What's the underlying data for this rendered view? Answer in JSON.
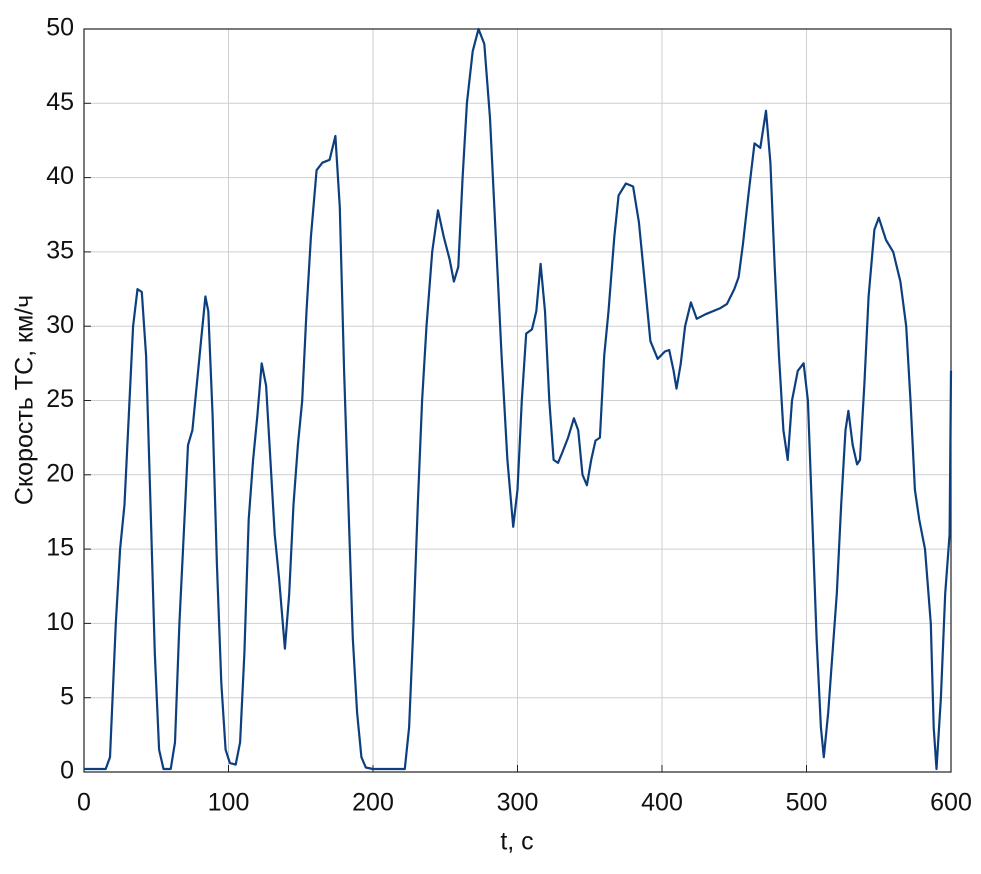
{
  "chart_data": {
    "type": "line",
    "xlabel": "t, с",
    "ylabel": "Скорость ТС, км/ч",
    "xlim": [
      0,
      600
    ],
    "ylim": [
      0,
      50
    ],
    "xticks": [
      0,
      100,
      200,
      300,
      400,
      500,
      600
    ],
    "yticks": [
      0,
      5,
      10,
      15,
      20,
      25,
      30,
      35,
      40,
      45,
      50
    ],
    "grid": true,
    "color": "#0d3f7e",
    "x": [
      0,
      15,
      18,
      22,
      25,
      28,
      31,
      34,
      37,
      40,
      43,
      46,
      49,
      52,
      55,
      60,
      63,
      66,
      70,
      72,
      75,
      78,
      81,
      84,
      86,
      89,
      92,
      95,
      98,
      101,
      105,
      108,
      111,
      114,
      117,
      120,
      123,
      126,
      129,
      132,
      135,
      139,
      142,
      145,
      148,
      151,
      154,
      157,
      161,
      165,
      170,
      174,
      177,
      180,
      183,
      186,
      189,
      192,
      195,
      200,
      210,
      222,
      225,
      228,
      231,
      234,
      237,
      241,
      245,
      249,
      253,
      256,
      259,
      262,
      265,
      269,
      273,
      277,
      281,
      285,
      289,
      293,
      297,
      300,
      303,
      306,
      310,
      313,
      316,
      319,
      322,
      325,
      328,
      331,
      335,
      339,
      342,
      345,
      348,
      351,
      354,
      357,
      360,
      363,
      367,
      370,
      375,
      380,
      384,
      388,
      392,
      397,
      402,
      405,
      408,
      410,
      413,
      416,
      420,
      424,
      430,
      440,
      445,
      450,
      453,
      456,
      460,
      464,
      468,
      472,
      475,
      478,
      481,
      484,
      487,
      490,
      494,
      498,
      501,
      504,
      507,
      510,
      512,
      515,
      518,
      521,
      524,
      527,
      529,
      532,
      535,
      537,
      540,
      543,
      547,
      550,
      555,
      560,
      565,
      569,
      572,
      575,
      578,
      582,
      586,
      588,
      590,
      593,
      596,
      599,
      600
    ],
    "values": [
      0.2,
      0.2,
      1,
      10,
      15,
      18,
      24,
      30,
      32.5,
      32.3,
      28,
      18,
      8,
      1.5,
      0.2,
      0.2,
      2,
      10,
      18,
      22,
      23,
      26,
      29,
      32,
      31,
      24,
      14,
      6,
      1.5,
      0.6,
      0.5,
      2,
      8,
      17,
      21,
      24,
      27.5,
      26,
      21,
      16,
      13,
      8.3,
      12,
      18,
      22,
      25,
      31,
      36,
      40.5,
      41,
      41.2,
      42.8,
      38,
      27,
      18,
      9,
      4,
      1,
      0.3,
      0.2,
      0.2,
      0.2,
      3,
      10,
      18,
      25,
      30,
      35,
      37.8,
      36,
      34.5,
      33,
      34,
      40,
      45,
      48.5,
      50,
      49,
      44,
      36,
      28,
      21,
      16.5,
      19,
      25,
      29.5,
      29.8,
      31,
      34.2,
      31,
      25,
      21,
      20.8,
      21.5,
      22.5,
      23.8,
      23,
      20,
      19.3,
      21,
      22.3,
      22.5,
      28,
      31,
      36,
      38.8,
      39.6,
      39.4,
      37,
      33,
      29,
      27.8,
      28.3,
      28.4,
      27,
      25.8,
      27.5,
      30,
      31.6,
      30.5,
      30.8,
      31.2,
      31.5,
      32.5,
      33.3,
      35.5,
      39,
      42.3,
      42,
      44.5,
      41,
      34,
      28,
      23,
      21,
      25,
      27,
      27.5,
      25,
      17,
      9,
      3,
      1,
      4,
      8,
      12,
      18,
      23,
      24.3,
      22,
      20.7,
      21,
      26,
      32,
      36.5,
      37.3,
      35.8,
      35,
      33,
      30,
      25,
      19,
      17,
      15,
      10,
      3,
      0.2,
      5,
      12,
      16,
      27
    ]
  }
}
